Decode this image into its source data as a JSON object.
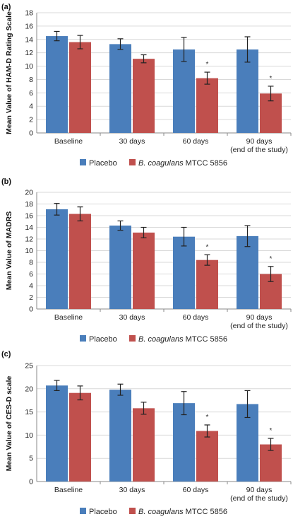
{
  "colors": {
    "placebo": "#4a7ebb",
    "probiotic": "#c0504d",
    "axis": "#888888",
    "grid": "#d9d9d9",
    "error": "#222222"
  },
  "legend": {
    "placebo": "Placebo",
    "probiotic_italic": "B. coagulans",
    "probiotic_rest": " MTCC 5856"
  },
  "chart_data": [
    {
      "panel": "(a)",
      "type": "bar",
      "ylabel": "Mean Value of HAM-D Rating Scale",
      "ylim": [
        0,
        18
      ],
      "ytick_step": 2,
      "categories": [
        "Baseline",
        "30 days",
        "60 days",
        "90 days"
      ],
      "category_sublabels": [
        "",
        "",
        "",
        "(end of the study)"
      ],
      "series": [
        {
          "name": "Placebo",
          "values": [
            14.5,
            13.3,
            12.5,
            12.5
          ],
          "errors": [
            0.7,
            0.8,
            1.8,
            1.9
          ]
        },
        {
          "name": "B. coagulans MTCC 5856",
          "values": [
            13.6,
            11.1,
            8.2,
            5.9
          ],
          "errors": [
            1.0,
            0.6,
            0.9,
            1.1
          ]
        }
      ],
      "annotations": [
        "",
        "",
        "*",
        "*"
      ]
    },
    {
      "panel": "(b)",
      "type": "bar",
      "ylabel": "Mean Value of MADRS",
      "ylim": [
        0,
        20
      ],
      "ytick_step": 2,
      "categories": [
        "Baseline",
        "30 days",
        "60 days",
        "90 days"
      ],
      "category_sublabels": [
        "",
        "",
        "",
        "(end of the study)"
      ],
      "series": [
        {
          "name": "Placebo",
          "values": [
            17.1,
            14.3,
            12.4,
            12.5
          ],
          "errors": [
            1.0,
            0.8,
            1.6,
            1.8
          ]
        },
        {
          "name": "B. coagulans MTCC 5856",
          "values": [
            16.3,
            13.1,
            8.4,
            6.0
          ],
          "errors": [
            1.2,
            0.9,
            0.9,
            1.3
          ]
        }
      ],
      "annotations": [
        "",
        "",
        "*",
        "*"
      ]
    },
    {
      "panel": "(c)",
      "type": "bar",
      "ylabel": "Mean Value of CES-D scale",
      "ylim": [
        0,
        25
      ],
      "ytick_step": 5,
      "categories": [
        "Baseline",
        "30 days",
        "60 days",
        "90 days"
      ],
      "category_sublabels": [
        "",
        "",
        "",
        "(end of the study)"
      ],
      "series": [
        {
          "name": "Placebo",
          "values": [
            20.7,
            19.8,
            16.9,
            16.7
          ],
          "errors": [
            1.1,
            1.2,
            2.5,
            2.9
          ]
        },
        {
          "name": "B. coagulans MTCC 5856",
          "values": [
            19.1,
            15.8,
            10.9,
            8.0
          ],
          "errors": [
            1.5,
            1.3,
            1.3,
            1.3
          ]
        }
      ],
      "annotations": [
        "",
        "",
        "*",
        "*"
      ]
    }
  ]
}
